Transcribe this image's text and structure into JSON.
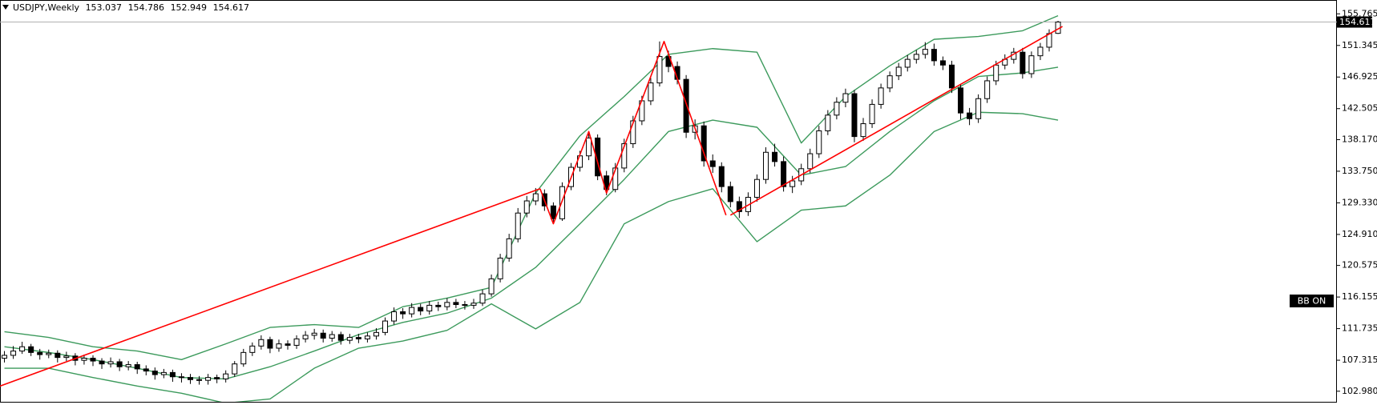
{
  "chart_data": {
    "type": "candlestick",
    "symbol": "USDJPY,Weekly",
    "indicator_label": "BB ON",
    "open": [
      107.6,
      108.0,
      108.6,
      109.2,
      108.4,
      108.1,
      108.3,
      107.7,
      107.9,
      107.3,
      107.6,
      107.2,
      106.8,
      107.1,
      106.4,
      106.7,
      106.1,
      105.8,
      105.3,
      105.6,
      105.0,
      104.9,
      104.6,
      104.5,
      104.9,
      104.7,
      105.4,
      106.8,
      108.4,
      109.3,
      110.2,
      109.0,
      109.6,
      109.4,
      110.3,
      110.8,
      111.1,
      110.4,
      110.9,
      110.1,
      110.5,
      110.3,
      110.7,
      111.2,
      112.8,
      114.1,
      113.8,
      114.7,
      114.2,
      115.0,
      114.8,
      115.4,
      115.1,
      115.0,
      115.3,
      116.6,
      118.7,
      121.6,
      124.3,
      127.9,
      129.6,
      130.6,
      128.9,
      127.1,
      131.6,
      134.3,
      135.9,
      138.4,
      133.1,
      131.2,
      134.2,
      137.6,
      140.8,
      143.6,
      146.1,
      149.8,
      148.4,
      146.6,
      139.2,
      140.1,
      135.2,
      134.4,
      131.6,
      129.5,
      128.1,
      130.1,
      132.6,
      136.4,
      135.1,
      131.6,
      132.4,
      134.1,
      136.2,
      139.4,
      141.6,
      143.4,
      144.6,
      138.6,
      140.4,
      143.1,
      145.4,
      147.1,
      148.3,
      149.4,
      150.1,
      150.8,
      149.2,
      148.6,
      145.4,
      141.9,
      141.1,
      143.9,
      146.4,
      148.6,
      149.4,
      150.4,
      147.4,
      149.9,
      151.1,
      153.037
    ],
    "high": [
      108.6,
      109.3,
      109.9,
      109.6,
      108.9,
      108.8,
      108.7,
      108.5,
      108.3,
      108.1,
      108.0,
      107.6,
      107.7,
      107.5,
      107.2,
      107.1,
      106.6,
      106.3,
      106.1,
      106.0,
      105.5,
      105.4,
      105.1,
      105.4,
      105.3,
      105.9,
      107.2,
      108.9,
      109.8,
      110.8,
      110.6,
      110.2,
      110.1,
      110.8,
      111.4,
      111.7,
      111.6,
      111.4,
      111.3,
      111.0,
      111.0,
      111.2,
      111.8,
      113.3,
      114.7,
      114.6,
      115.3,
      115.2,
      115.6,
      115.5,
      116.0,
      115.9,
      115.6,
      115.9,
      117.2,
      119.3,
      122.2,
      125.0,
      128.6,
      130.3,
      131.4,
      131.2,
      129.4,
      132.2,
      134.9,
      136.6,
      139.2,
      138.9,
      133.8,
      134.9,
      138.3,
      141.5,
      144.3,
      146.8,
      151.9,
      150.6,
      149.1,
      147.2,
      141.0,
      140.7,
      136.1,
      135.0,
      132.3,
      130.2,
      130.8,
      133.3,
      137.1,
      137.6,
      135.8,
      133.1,
      134.8,
      136.9,
      140.1,
      142.3,
      144.1,
      145.3,
      145.1,
      141.2,
      143.8,
      146.0,
      147.7,
      148.9,
      150.0,
      150.7,
      151.8,
      151.6,
      149.8,
      149.2,
      146.0,
      142.6,
      144.5,
      147.0,
      149.2,
      150.1,
      151.0,
      151.0,
      150.5,
      151.7,
      153.6,
      154.786
    ],
    "low": [
      107.0,
      107.5,
      108.2,
      107.9,
      107.4,
      107.6,
      107.0,
      107.2,
      106.6,
      106.7,
      106.5,
      106.1,
      106.3,
      105.8,
      105.9,
      105.4,
      105.2,
      104.6,
      104.8,
      104.3,
      104.2,
      104.0,
      103.9,
      103.9,
      104.1,
      104.2,
      105.0,
      106.4,
      107.9,
      108.8,
      108.3,
      108.5,
      108.8,
      108.9,
      109.8,
      110.2,
      109.8,
      109.9,
      109.5,
      109.6,
      109.7,
      109.8,
      110.2,
      110.8,
      112.3,
      113.1,
      113.3,
      113.6,
      113.7,
      114.2,
      114.3,
      114.6,
      114.4,
      114.5,
      114.9,
      116.2,
      118.2,
      121.1,
      123.8,
      127.3,
      129.0,
      128.2,
      126.4,
      126.8,
      131.1,
      133.7,
      135.3,
      132.5,
      130.4,
      130.8,
      133.6,
      137.0,
      140.2,
      143.0,
      145.6,
      147.6,
      145.9,
      138.4,
      138.2,
      134.4,
      133.5,
      130.8,
      128.7,
      127.2,
      127.5,
      129.5,
      132.0,
      134.4,
      130.9,
      130.7,
      131.8,
      133.5,
      135.6,
      138.8,
      141.0,
      142.7,
      137.8,
      138.0,
      139.8,
      142.5,
      144.8,
      146.5,
      147.7,
      148.8,
      149.5,
      148.5,
      147.9,
      144.7,
      141.0,
      140.2,
      140.5,
      143.3,
      145.8,
      148.0,
      148.8,
      146.7,
      146.8,
      149.3,
      150.5,
      152.949
    ],
    "close": [
      108.0,
      108.6,
      109.2,
      108.4,
      108.1,
      108.3,
      107.7,
      107.9,
      107.3,
      107.6,
      107.2,
      106.8,
      107.1,
      106.4,
      106.7,
      106.1,
      105.8,
      105.3,
      105.6,
      105.0,
      104.9,
      104.6,
      104.5,
      104.9,
      104.7,
      105.4,
      106.8,
      108.4,
      109.3,
      110.2,
      109.0,
      109.6,
      109.4,
      110.3,
      110.8,
      111.1,
      110.4,
      110.9,
      110.1,
      110.5,
      110.3,
      110.7,
      111.2,
      112.8,
      114.1,
      113.8,
      114.7,
      114.2,
      115.0,
      114.8,
      115.4,
      115.1,
      115.0,
      115.3,
      116.6,
      118.7,
      121.6,
      124.3,
      127.9,
      129.6,
      130.6,
      128.9,
      127.1,
      131.6,
      134.3,
      135.9,
      138.4,
      133.1,
      131.2,
      134.2,
      137.6,
      140.8,
      143.6,
      146.1,
      149.8,
      148.4,
      146.6,
      139.2,
      140.1,
      135.2,
      134.4,
      131.6,
      129.5,
      128.1,
      130.1,
      132.6,
      136.4,
      135.1,
      131.6,
      132.4,
      134.1,
      136.2,
      139.4,
      141.6,
      143.4,
      144.6,
      138.6,
      140.4,
      143.1,
      145.4,
      147.1,
      148.3,
      149.4,
      150.1,
      150.8,
      149.2,
      148.6,
      145.4,
      141.9,
      141.1,
      143.9,
      146.4,
      148.6,
      149.4,
      150.4,
      147.4,
      149.9,
      151.1,
      153.0,
      154.617
    ],
    "bands": {
      "color": "#3c9a5c",
      "x": [
        0,
        5,
        10,
        15,
        20,
        25,
        30,
        35,
        40,
        45,
        50,
        55,
        60,
        65,
        70,
        75,
        80,
        85,
        90,
        95,
        100,
        105,
        110,
        115,
        119
      ],
      "upper": [
        111.3,
        110.5,
        109.2,
        108.6,
        107.4,
        109.6,
        111.9,
        112.3,
        111.9,
        114.8,
        116.0,
        117.5,
        130.7,
        138.7,
        144.2,
        150.1,
        150.9,
        150.4,
        137.7,
        144.2,
        148.5,
        152.2,
        152.6,
        153.4,
        155.5
      ],
      "middle": [
        109.2,
        108.4,
        107.4,
        106.2,
        104.9,
        104.7,
        106.4,
        108.6,
        110.9,
        112.6,
        113.9,
        116.0,
        120.3,
        126.4,
        132.6,
        139.3,
        140.9,
        139.9,
        133.2,
        134.4,
        139.3,
        143.6,
        147.0,
        147.5,
        148.3
      ],
      "lower": [
        106.2,
        106.2,
        104.9,
        103.7,
        102.7,
        101.3,
        101.9,
        106.2,
        109.0,
        110.0,
        111.5,
        115.2,
        111.7,
        115.4,
        126.4,
        129.5,
        131.3,
        123.9,
        128.3,
        128.9,
        133.2,
        139.3,
        142.0,
        141.8,
        140.9
      ]
    },
    "trendlines": {
      "color": "#ff0000",
      "lines": [
        {
          "x": [
            -0.5,
            60.5
          ],
          "y": [
            103.7,
            131.3
          ]
        },
        {
          "x": [
            60.5,
            62,
            66,
            68,
            74.5,
            81.5
          ],
          "y": [
            131.3,
            126.4,
            139.3,
            130.7,
            151.9,
            127.6
          ]
        },
        {
          "x": [
            82,
            119.5
          ],
          "y": [
            127.6,
            154.0
          ]
        }
      ]
    },
    "xlim": [
      -0.5,
      150.5
    ],
    "ylim": [
      101.5,
      157.7
    ],
    "yticks": [
      155.765,
      151.345,
      146.925,
      142.505,
      {
        "value": 138.17,
        "label": "138.170"
      },
      {
        "value": 133.75,
        "label": "133.750"
      },
      {
        "value": 129.33,
        "label": "129.330"
      },
      {
        "value": 124.91,
        "label": "124.910"
      },
      120.575,
      116.155,
      111.735,
      107.315,
      {
        "value": 102.98,
        "label": "102.980"
      }
    ]
  }
}
